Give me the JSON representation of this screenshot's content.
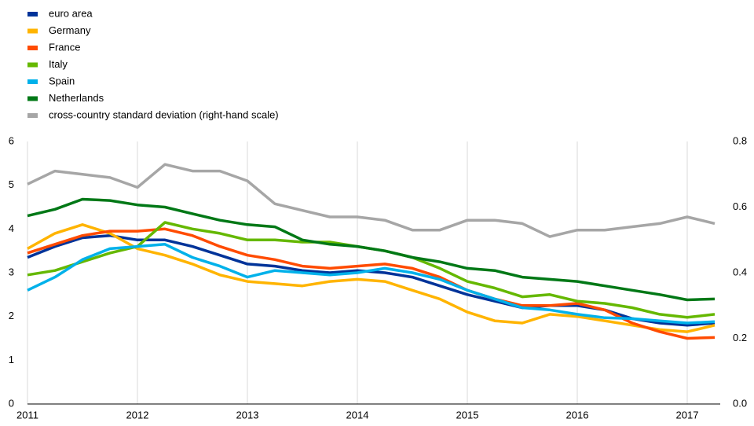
{
  "chart_data": {
    "type": "line",
    "x": [
      2011,
      2011.25,
      2011.5,
      2011.75,
      2012,
      2012.25,
      2012.5,
      2012.75,
      2013,
      2013.25,
      2013.5,
      2013.75,
      2014,
      2014.25,
      2014.5,
      2014.75,
      2015,
      2015.25,
      2015.5,
      2015.75,
      2016,
      2016.25,
      2016.5,
      2016.75,
      2017,
      2017.25
    ],
    "series": [
      {
        "name": "euro area",
        "color": "#003399",
        "values": [
          3.35,
          3.6,
          3.8,
          3.85,
          3.75,
          3.75,
          3.6,
          3.4,
          3.2,
          3.15,
          3.05,
          3.0,
          3.05,
          3.0,
          2.9,
          2.7,
          2.5,
          2.35,
          2.2,
          2.25,
          2.25,
          2.15,
          1.95,
          1.85,
          1.8,
          1.85
        ]
      },
      {
        "name": "Germany",
        "color": "#ffb400",
        "values": [
          3.55,
          3.9,
          4.1,
          3.9,
          3.55,
          3.4,
          3.2,
          2.95,
          2.8,
          2.75,
          2.7,
          2.8,
          2.85,
          2.8,
          2.6,
          2.4,
          2.1,
          1.9,
          1.85,
          2.05,
          2.0,
          1.9,
          1.8,
          1.7,
          1.65,
          1.8
        ]
      },
      {
        "name": "France",
        "color": "#ff4b00",
        "values": [
          3.45,
          3.65,
          3.85,
          3.95,
          3.95,
          4.0,
          3.85,
          3.6,
          3.4,
          3.3,
          3.15,
          3.1,
          3.15,
          3.2,
          3.1,
          2.9,
          2.6,
          2.4,
          2.25,
          2.25,
          2.3,
          2.15,
          1.85,
          1.65,
          1.5,
          1.52
        ]
      },
      {
        "name": "Italy",
        "color": "#65b800",
        "values": [
          2.95,
          3.05,
          3.25,
          3.45,
          3.6,
          4.15,
          4.0,
          3.9,
          3.75,
          3.75,
          3.7,
          3.7,
          3.6,
          3.5,
          3.35,
          3.1,
          2.8,
          2.65,
          2.45,
          2.5,
          2.35,
          2.3,
          2.2,
          2.05,
          1.98,
          2.05
        ]
      },
      {
        "name": "Spain",
        "color": "#00b1ea",
        "values": [
          2.6,
          2.9,
          3.3,
          3.55,
          3.6,
          3.65,
          3.35,
          3.15,
          2.9,
          3.05,
          3.0,
          2.95,
          3.0,
          3.1,
          3.0,
          2.85,
          2.6,
          2.4,
          2.2,
          2.15,
          2.05,
          1.97,
          1.95,
          1.9,
          1.85,
          1.88
        ]
      },
      {
        "name": "Netherlands",
        "color": "#007816",
        "values": [
          4.3,
          4.45,
          4.68,
          4.65,
          4.55,
          4.5,
          4.35,
          4.2,
          4.1,
          4.05,
          3.75,
          3.65,
          3.6,
          3.5,
          3.35,
          3.25,
          3.1,
          3.05,
          2.9,
          2.85,
          2.8,
          2.7,
          2.6,
          2.5,
          2.38,
          2.4
        ]
      },
      {
        "name": "cross-country standard deviation (right-hand scale)",
        "color": "#a6a6a6",
        "axis": "y2",
        "values": [
          0.67,
          0.71,
          0.7,
          0.69,
          0.66,
          0.73,
          0.71,
          0.71,
          0.68,
          0.61,
          0.59,
          0.57,
          0.57,
          0.56,
          0.53,
          0.53,
          0.56,
          0.56,
          0.55,
          0.51,
          0.53,
          0.53,
          0.54,
          0.55,
          0.57,
          0.55
        ]
      }
    ],
    "xlim": [
      2011,
      2017.3
    ],
    "xticks": [
      2011,
      2012,
      2013,
      2014,
      2015,
      2016,
      2017
    ],
    "ylim": [
      0,
      6
    ],
    "yticks": [
      0,
      1,
      2,
      3,
      4,
      5,
      6
    ],
    "y2lim": [
      0,
      0.8
    ],
    "y2ticks": [
      {
        "value": 0,
        "label": "0.0"
      },
      0.2,
      0.4,
      0.6,
      0.8
    ],
    "grid": true
  }
}
